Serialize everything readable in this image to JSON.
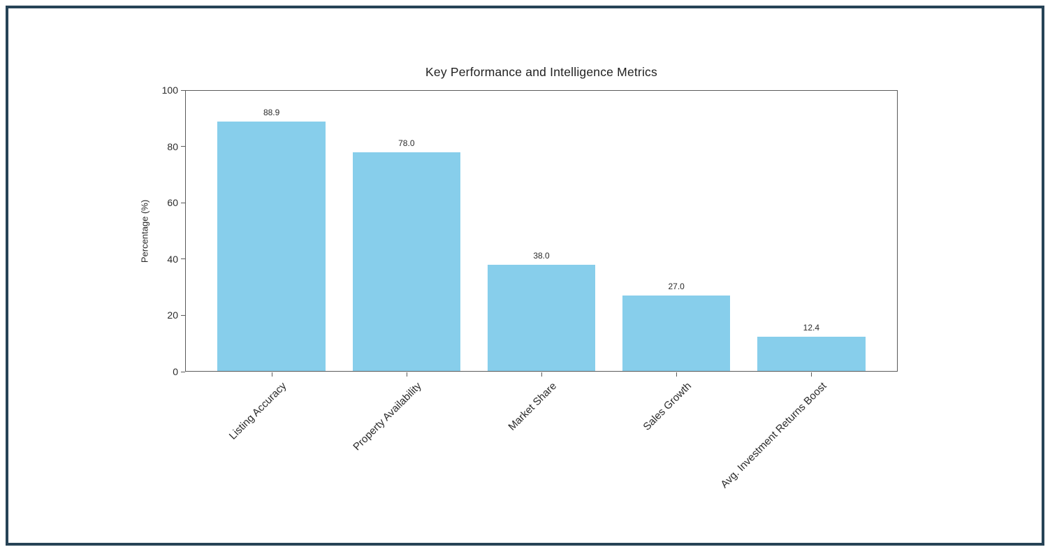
{
  "frame": {
    "border_color": "#274356",
    "background_color": "#ffffff"
  },
  "chart_data": {
    "type": "bar",
    "title": "Key Performance and Intelligence Metrics",
    "categories": [
      "Listing Accuracy",
      "Property Availability",
      "Market Share",
      "Sales Growth",
      "Avg. Investment Returns Boost"
    ],
    "values": [
      88.9,
      78.0,
      38.0,
      27.0,
      12.4
    ],
    "value_labels": [
      "88.9",
      "78.0",
      "38.0",
      "27.0",
      "12.4"
    ],
    "xlabel": "",
    "ylabel": "Percentage (%)",
    "ylim": [
      0,
      100
    ],
    "yticks": [
      0,
      20,
      40,
      60,
      80,
      100
    ],
    "bar_color": "#87ceeb",
    "text_color": "#2a2a2a",
    "grid": false,
    "legend": null,
    "x_tick_rotation_deg": 45,
    "bar_width_fraction": 0.8
  }
}
